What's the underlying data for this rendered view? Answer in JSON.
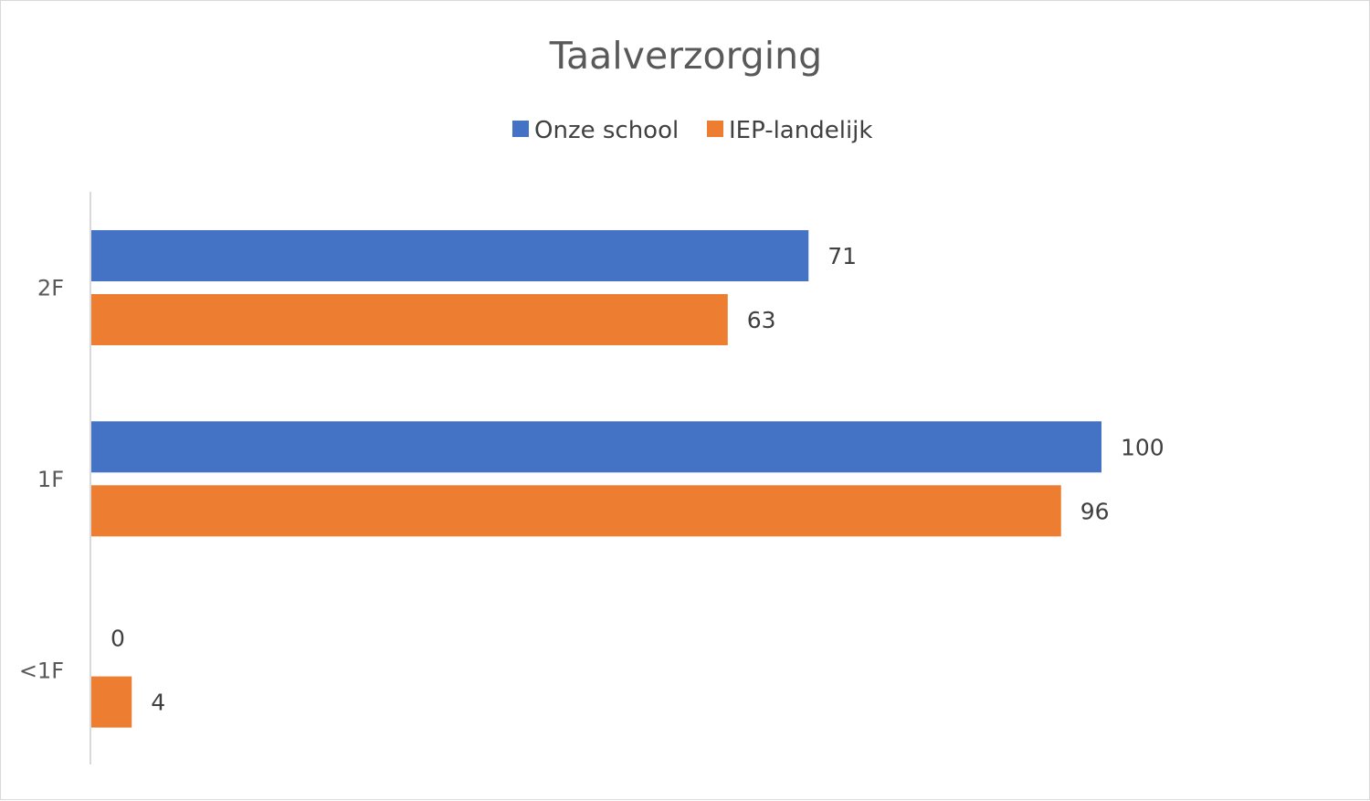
{
  "chart_data": {
    "type": "bar",
    "orientation": "horizontal",
    "title": "Taalverzorging",
    "xlabel": "",
    "ylabel": "",
    "categories": [
      "2F",
      "1F",
      "<1F"
    ],
    "series": [
      {
        "name": "Onze school",
        "values": [
          71,
          100,
          0
        ],
        "labels": [
          "71",
          "100",
          "0"
        ],
        "color": "#4472C4"
      },
      {
        "name": "IEP-landelijk",
        "values": [
          63,
          96,
          4
        ],
        "labels": [
          "63",
          "96",
          "4"
        ],
        "color": "#ED7D31"
      }
    ],
    "xlim": [
      0,
      100
    ],
    "grid": false,
    "legend_position": "top",
    "data_labels": true
  }
}
